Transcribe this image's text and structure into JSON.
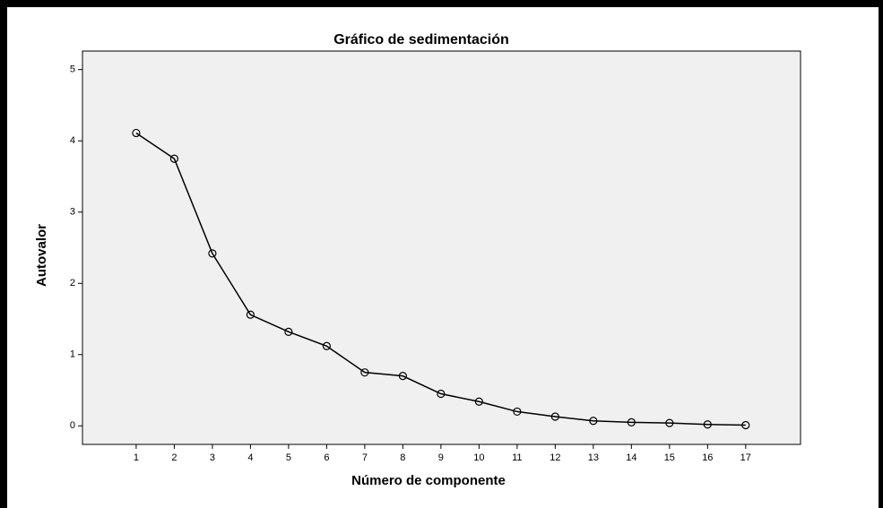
{
  "chart_data": {
    "type": "line",
    "title": "Gráfico de sedimentación",
    "x_label": "Número de componente",
    "y_label": "Autovalor",
    "x": [
      1,
      2,
      3,
      4,
      5,
      6,
      7,
      8,
      9,
      10,
      11,
      12,
      13,
      14,
      15,
      16,
      17
    ],
    "series": [
      {
        "color": "#000000",
        "values": [
          4.11,
          3.75,
          2.42,
          1.56,
          1.32,
          1.12,
          0.75,
          0.7,
          0.45,
          0.34,
          0.2,
          0.13,
          0.07,
          0.05,
          0.04,
          0.02,
          0.01
        ]
      }
    ],
    "xlim": [
      -0.41,
      18.44
    ],
    "xticks": [
      1,
      2,
      3,
      4,
      5,
      6,
      7,
      8,
      9,
      10,
      11,
      12,
      13,
      14,
      15,
      16,
      17
    ],
    "ylim": [
      -0.26,
      5.26
    ],
    "yticks": [
      0,
      1,
      2,
      3,
      4,
      5
    ],
    "plot_background": "#f0f0f0",
    "markers": "open-circle"
  }
}
